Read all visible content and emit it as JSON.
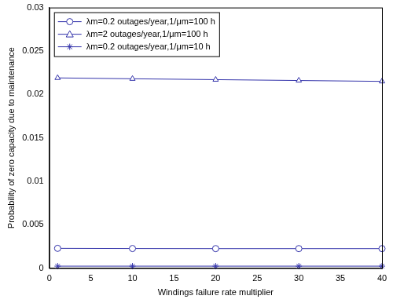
{
  "chart_data": {
    "type": "line",
    "x_label": "Windings failure rate multiplier",
    "y_label": "Probability of zero capacity due to maintenance",
    "x": [
      1,
      10,
      20,
      30,
      40
    ],
    "xlim": [
      0,
      40
    ],
    "xticks": [
      0,
      5,
      10,
      15,
      20,
      25,
      30,
      35,
      40
    ],
    "ylim": [
      0,
      0.03
    ],
    "yticks": [
      0,
      0.005,
      0.01,
      0.015,
      0.02,
      0.025,
      0.03
    ],
    "grid": false,
    "legend": "upper left",
    "series": [
      {
        "name": "λm=0.2 outages/year,1/μm=100 h",
        "color": "#3333aa",
        "marker": "circle",
        "values": [
          0.00228,
          0.00226,
          0.00225,
          0.00225,
          0.00225
        ]
      },
      {
        "name": "λm=2 outages/year,1/μm=100 h",
        "color": "#3333aa",
        "marker": "triangle",
        "values": [
          0.0219,
          0.0218,
          0.0217,
          0.0216,
          0.0215
        ]
      },
      {
        "name": "λm=0.2 outages/year,1/μm=10 h",
        "color": "#3333aa",
        "marker": "asterisk",
        "values": [
          0.00023,
          0.00023,
          0.00023,
          0.00023,
          0.00023
        ]
      }
    ]
  }
}
